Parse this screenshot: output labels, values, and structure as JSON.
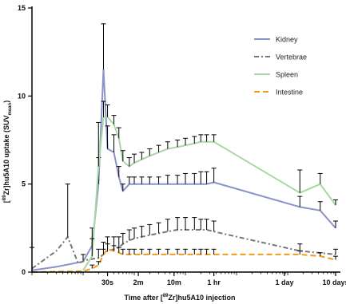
{
  "chart_data": {
    "type": "line",
    "xlabel": {
      "pre": "Time after [",
      "sup": "89",
      "post": "Zr]hu5A10 injection"
    },
    "ylabel": {
      "pre": "[",
      "sup": "89",
      "mid": "Zr]hu5A10 uptake (SUV",
      "sub": "mean",
      "post": ")"
    },
    "x_scale": "log",
    "x_unit": "seconds",
    "xlim": [
      1,
      864000
    ],
    "ylim": [
      0,
      15
    ],
    "y_ticks": [
      0,
      5,
      10,
      15
    ],
    "x_ticks": [
      {
        "x": 30,
        "label": "30s"
      },
      {
        "x": 120,
        "label": "2m"
      },
      {
        "x": 600,
        "label": "10m"
      },
      {
        "x": 3600,
        "label": "1 hr"
      },
      {
        "x": 86400,
        "label": "1 day"
      },
      {
        "x": 864000,
        "label": "10 days"
      }
    ],
    "grid": false,
    "legend_position": "top-right",
    "series": [
      {
        "name": "Kidney",
        "color": "#8b93cb",
        "dash": "",
        "points": [
          [
            1,
            0.1,
            0
          ],
          [
            3,
            0.3,
            0
          ],
          [
            10,
            0.6,
            0.4
          ],
          [
            15,
            1.5,
            1.0
          ],
          [
            20,
            5.0,
            1.5
          ],
          [
            25,
            11.5,
            2.6
          ],
          [
            30,
            7.0,
            1.3
          ],
          [
            40,
            6.8,
            1.0
          ],
          [
            50,
            5.4,
            0.6
          ],
          [
            60,
            4.6,
            0.4
          ],
          [
            80,
            5.0,
            0.4
          ],
          [
            100,
            5.0,
            0.4
          ],
          [
            140,
            5.0,
            0.4
          ],
          [
            200,
            5.0,
            0.4
          ],
          [
            300,
            5.0,
            0.4
          ],
          [
            450,
            5.0,
            0.5
          ],
          [
            700,
            5.0,
            0.5
          ],
          [
            1000,
            5.0,
            0.6
          ],
          [
            1500,
            5.0,
            0.6
          ],
          [
            2000,
            5.0,
            0.7
          ],
          [
            2600,
            5.0,
            0.7
          ],
          [
            3600,
            5.1,
            0.8
          ],
          [
            172800,
            3.7,
            0.6
          ],
          [
            432000,
            3.5,
            0.5
          ],
          [
            864000,
            2.5,
            0.4
          ]
        ]
      },
      {
        "name": "Vertebrae",
        "color": "#777777",
        "dash": "6,3,2,3",
        "points": [
          [
            1,
            0.2,
            1.2
          ],
          [
            3,
            1.2,
            0
          ],
          [
            5,
            2.0,
            3.0
          ],
          [
            8,
            0.5,
            0
          ],
          [
            12,
            0.7,
            0
          ],
          [
            20,
            0.8,
            0.5
          ],
          [
            25,
            1.0,
            0.7
          ],
          [
            30,
            1.2,
            0.8
          ],
          [
            40,
            1.3,
            0.7
          ],
          [
            50,
            1.4,
            0.6
          ],
          [
            60,
            1.6,
            0.6
          ],
          [
            80,
            1.8,
            0.6
          ],
          [
            100,
            1.9,
            0.6
          ],
          [
            140,
            2.0,
            0.6
          ],
          [
            200,
            2.1,
            0.6
          ],
          [
            300,
            2.2,
            0.6
          ],
          [
            450,
            2.3,
            0.7
          ],
          [
            700,
            2.4,
            0.7
          ],
          [
            1000,
            2.4,
            0.7
          ],
          [
            1500,
            2.4,
            0.7
          ],
          [
            2000,
            2.4,
            0.6
          ],
          [
            2600,
            2.4,
            0.6
          ],
          [
            3600,
            2.3,
            0.6
          ],
          [
            172800,
            1.2,
            0.4
          ],
          [
            864000,
            1.0,
            0.3
          ]
        ]
      },
      {
        "name": "Spleen",
        "color": "#a8d8a2",
        "dash": "",
        "points": [
          [
            10,
            0.1,
            0
          ],
          [
            15,
            0.9,
            1.0
          ],
          [
            20,
            6.0,
            2.5
          ],
          [
            25,
            8.8,
            0.9
          ],
          [
            30,
            8.8,
            0.7
          ],
          [
            40,
            8.4,
            0.5
          ],
          [
            50,
            7.6,
            0.6
          ],
          [
            60,
            6.3,
            0.6
          ],
          [
            80,
            6.0,
            0.5
          ],
          [
            100,
            6.2,
            0.5
          ],
          [
            140,
            6.4,
            0.4
          ],
          [
            200,
            6.6,
            0.4
          ],
          [
            300,
            6.8,
            0.4
          ],
          [
            450,
            7.0,
            0.4
          ],
          [
            700,
            7.1,
            0.4
          ],
          [
            1000,
            7.2,
            0.4
          ],
          [
            1500,
            7.3,
            0.4
          ],
          [
            2000,
            7.4,
            0.4
          ],
          [
            2600,
            7.4,
            0.4
          ],
          [
            3600,
            7.4,
            0.4
          ],
          [
            172800,
            4.5,
            1.3
          ],
          [
            432000,
            5.0,
            0.6
          ],
          [
            864000,
            3.8,
            0.3
          ]
        ]
      },
      {
        "name": "Intestine",
        "color": "#f39a1a",
        "dash": "7,4",
        "points": [
          [
            1,
            0.0,
            0
          ],
          [
            10,
            0.05,
            0
          ],
          [
            15,
            0.2,
            0.2
          ],
          [
            20,
            0.4,
            0.2
          ],
          [
            25,
            1.0,
            0.3
          ],
          [
            30,
            1.3,
            0.3
          ],
          [
            40,
            1.2,
            0.3
          ],
          [
            50,
            1.1,
            0.3
          ],
          [
            60,
            1.0,
            0.3
          ],
          [
            80,
            1.0,
            0.3
          ],
          [
            100,
            1.0,
            0.3
          ],
          [
            140,
            1.0,
            0.3
          ],
          [
            200,
            1.0,
            0.3
          ],
          [
            300,
            1.0,
            0.3
          ],
          [
            450,
            1.0,
            0.3
          ],
          [
            700,
            1.0,
            0.3
          ],
          [
            1000,
            1.0,
            0.3
          ],
          [
            1500,
            1.0,
            0.3
          ],
          [
            2000,
            1.0,
            0.3
          ],
          [
            2600,
            1.0,
            0.3
          ],
          [
            3600,
            1.0,
            0.3
          ],
          [
            172800,
            1.0,
            0.2
          ],
          [
            432000,
            0.9,
            0.2
          ],
          [
            864000,
            0.7,
            0.2
          ]
        ]
      }
    ]
  }
}
